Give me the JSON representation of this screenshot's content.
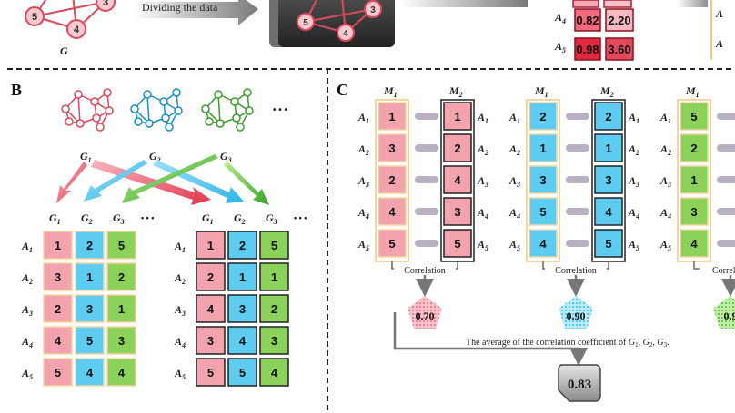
{
  "colors": {
    "pink": "#f2a3ad",
    "pink_stroke": "#d94a5c",
    "blue": "#5ecbf0",
    "blue_stroke": "#1a8fc0",
    "green": "#8bd15a",
    "green_stroke": "#3c9a2e",
    "dark_red": "#d1283c",
    "med_red": "#e86a78",
    "grey_pill": "#b9b0c2",
    "label_border": "#f3d6a3"
  },
  "top": {
    "arrow_label": "Dividing the data",
    "graph_label": "G",
    "graph_nodes": [
      "5",
      "4",
      "3"
    ],
    "dark_box_nodes": [
      "5",
      "4",
      "3"
    ],
    "rows": [
      {
        "label": "A",
        "sub": "4",
        "v1": "0.82",
        "v2": "2.20"
      },
      {
        "label": "A",
        "sub": "5",
        "v1": "0.98",
        "v2": "3.60"
      }
    ]
  },
  "panel_b": {
    "letter": "B",
    "graphs": [
      {
        "label": "G",
        "sub": "1",
        "color": "pink"
      },
      {
        "label": "G",
        "sub": "2",
        "color": "blue"
      },
      {
        "label": "G",
        "sub": "3",
        "color": "green"
      }
    ],
    "ellipsis": "• • •",
    "col_headers": [
      {
        "label": "G",
        "sub": "1"
      },
      {
        "label": "G",
        "sub": "2"
      },
      {
        "label": "G",
        "sub": "3"
      }
    ],
    "header_ellipsis": "• • •",
    "row_labels": [
      {
        "label": "A",
        "sub": "1"
      },
      {
        "label": "A",
        "sub": "2"
      },
      {
        "label": "A",
        "sub": "3"
      },
      {
        "label": "A",
        "sub": "4"
      },
      {
        "label": "A",
        "sub": "5"
      }
    ],
    "left_table": [
      [
        "1",
        "2",
        "5"
      ],
      [
        "3",
        "1",
        "2"
      ],
      [
        "2",
        "3",
        "1"
      ],
      [
        "4",
        "5",
        "3"
      ],
      [
        "5",
        "4",
        "4"
      ]
    ],
    "right_table": [
      [
        "1",
        "2",
        "5"
      ],
      [
        "2",
        "1",
        "1"
      ],
      [
        "4",
        "3",
        "2"
      ],
      [
        "3",
        "4",
        "3"
      ],
      [
        "5",
        "5",
        "4"
      ]
    ]
  },
  "panel_c": {
    "letter": "C",
    "m_headers": [
      {
        "label": "M",
        "sub": "1"
      },
      {
        "label": "M",
        "sub": "2"
      }
    ],
    "groups": [
      {
        "color": "pink",
        "m1": [
          "1",
          "3",
          "2",
          "4",
          "5"
        ],
        "m2": [
          "1",
          "2",
          "4",
          "3",
          "5"
        ],
        "corr": "0.70"
      },
      {
        "color": "blue",
        "m1": [
          "2",
          "1",
          "3",
          "5",
          "4"
        ],
        "m2": [
          "2",
          "1",
          "3",
          "4",
          "5"
        ],
        "corr": "0.90"
      },
      {
        "color": "green",
        "m1": [
          "5",
          "2",
          "1",
          "3",
          "4"
        ],
        "m2": [],
        "corr": "0.9"
      }
    ],
    "correlation_label": "Correlation",
    "correlation_label_cut": "Correl",
    "average_text_prefix": "The average of the correlation coefficient of ",
    "average_terms": [
      {
        "label": "G",
        "sub": "1"
      },
      {
        "label": "G",
        "sub": "2"
      },
      {
        "label": "G",
        "sub": "3"
      }
    ],
    "average_value": "0.83"
  }
}
